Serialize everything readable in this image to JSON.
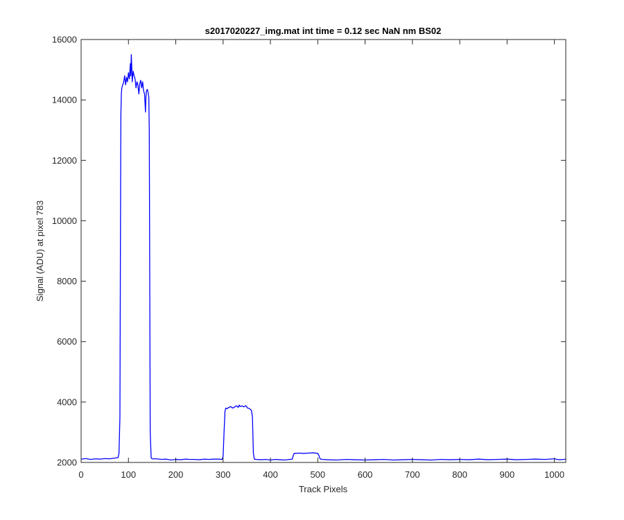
{
  "chart_data": {
    "type": "line",
    "title": "s2017020227_img.mat int time = 0.12 sec  NaN nm BS02",
    "xlabel": "Track Pixels",
    "ylabel": "Signal (ADU) at pixel 783",
    "xlim": [
      0,
      1024
    ],
    "ylim": [
      2000,
      16000
    ],
    "xticks": [
      0,
      100,
      200,
      300,
      400,
      500,
      600,
      700,
      800,
      900,
      1000
    ],
    "yticks": [
      2000,
      4000,
      6000,
      8000,
      10000,
      12000,
      14000,
      16000
    ],
    "grid": false,
    "line_color": "#0000ff",
    "series": [
      {
        "x": [
          0,
          10,
          20,
          30,
          40,
          50,
          60,
          70,
          78,
          80,
          82,
          83,
          84,
          85,
          86,
          88,
          90,
          92,
          94,
          96,
          98,
          100,
          102,
          104,
          105,
          106,
          107,
          108,
          110,
          112,
          114,
          116,
          118,
          120,
          122,
          124,
          126,
          128,
          130,
          132,
          134,
          136,
          137,
          138,
          140,
          142,
          143,
          144,
          145,
          146,
          148,
          150,
          160,
          170,
          180,
          190,
          200,
          210,
          220,
          230,
          240,
          250,
          260,
          270,
          280,
          290,
          298,
          300,
          302,
          304,
          306,
          308,
          312,
          316,
          320,
          324,
          328,
          332,
          334,
          336,
          340,
          344,
          348,
          352,
          356,
          358,
          360,
          362,
          364,
          366,
          370,
          380,
          390,
          400,
          410,
          420,
          430,
          440,
          446,
          448,
          450,
          452,
          460,
          470,
          480,
          490,
          500,
          502,
          504,
          506,
          510,
          520,
          540,
          560,
          580,
          600,
          620,
          640,
          660,
          680,
          700,
          720,
          740,
          760,
          780,
          800,
          820,
          840,
          860,
          880,
          900,
          920,
          940,
          960,
          980,
          1000,
          1010,
          1020,
          1024
        ],
        "y": [
          2110,
          2130,
          2100,
          2120,
          2110,
          2130,
          2120,
          2140,
          2160,
          2300,
          3500,
          9000,
          13500,
          14200,
          14400,
          14500,
          14600,
          14800,
          14500,
          14750,
          14600,
          14900,
          14700,
          15200,
          14800,
          15500,
          15100,
          14600,
          14950,
          14800,
          14700,
          14400,
          14600,
          14500,
          14200,
          14550,
          14650,
          14400,
          14600,
          14300,
          14200,
          13600,
          14100,
          14300,
          14350,
          14200,
          14100,
          13000,
          8000,
          3000,
          2150,
          2120,
          2120,
          2100,
          2110,
          2080,
          2100,
          2090,
          2110,
          2100,
          2100,
          2090,
          2110,
          2100,
          2110,
          2110,
          2100,
          2200,
          3000,
          3700,
          3800,
          3780,
          3820,
          3850,
          3800,
          3830,
          3880,
          3820,
          3900,
          3850,
          3870,
          3840,
          3880,
          3800,
          3780,
          3750,
          3720,
          3500,
          2300,
          2110,
          2100,
          2090,
          2100,
          2080,
          2100,
          2090,
          2080,
          2100,
          2110,
          2220,
          2300,
          2300,
          2310,
          2300,
          2310,
          2320,
          2300,
          2250,
          2150,
          2110,
          2100,
          2090,
          2080,
          2100,
          2090,
          2080,
          2090,
          2100,
          2080,
          2090,
          2100,
          2090,
          2080,
          2100,
          2090,
          2100,
          2090,
          2110,
          2090,
          2100,
          2110,
          2090,
          2100,
          2110,
          2100,
          2120,
          2090,
          2100,
          2110
        ]
      }
    ]
  }
}
